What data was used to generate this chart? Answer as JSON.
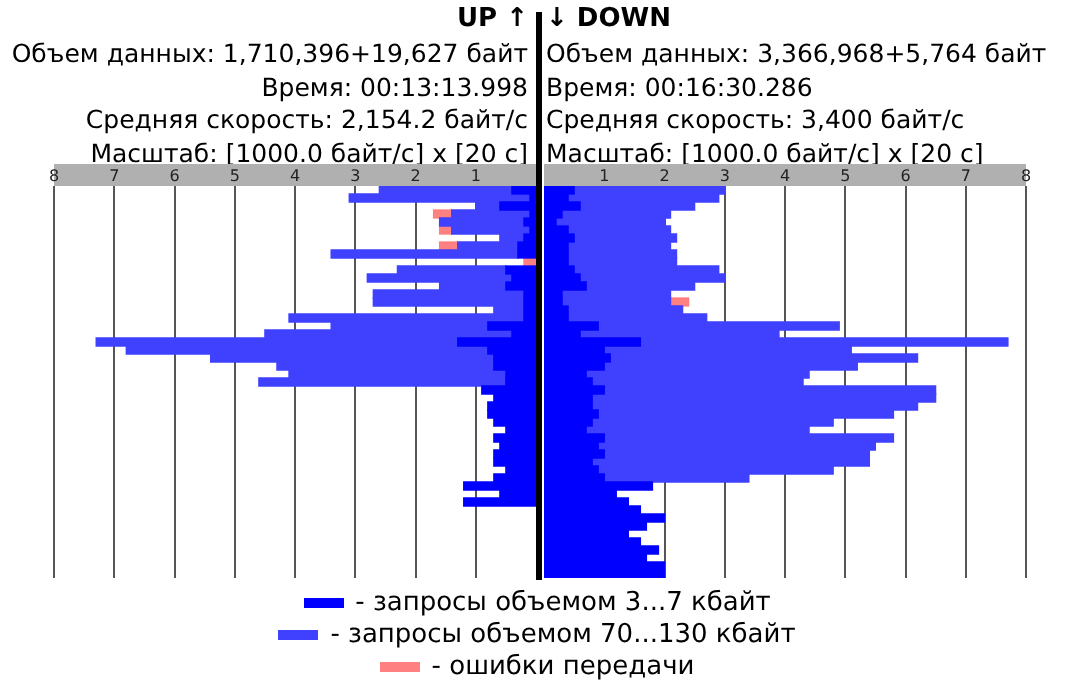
{
  "chart_data": [
    {
      "type": "bar",
      "orientation": "horizontal",
      "stacked": true,
      "title": "UP ↑",
      "subtitle": "Объем данных: 1,710,396+19,627 байт",
      "annotations": [
        "Время: 00:13:13.998",
        "Средняя скорость: 2,154.2 байт/с",
        "Масштаб: [1000.0 байт/с] x [20 с]"
      ],
      "categories": [
        null,
        null,
        null,
        null,
        null,
        null,
        null,
        null,
        null,
        null,
        null,
        null,
        null,
        null,
        null,
        null,
        null,
        null,
        null,
        null,
        null,
        null,
        null,
        null,
        null,
        null,
        null,
        null,
        null,
        null,
        null,
        null,
        null,
        null,
        null,
        null,
        null,
        null,
        null,
        null,
        null,
        null,
        null,
        null,
        null,
        null,
        null,
        null,
        null
      ],
      "xlim": [
        8,
        0
      ],
      "xticks": [
        1,
        2,
        3,
        4,
        5,
        6,
        7,
        8
      ],
      "grid": "x",
      "legend": "bottom",
      "series": [
        {
          "name": "- запросы объемом 3...7 кбайт",
          "color": "#0000ff",
          "values": [
            0.4,
            0.1,
            0.6,
            0.1,
            0.2,
            0.1,
            0.2,
            0.3,
            0.3,
            null,
            0.5,
            0.4,
            0.5,
            0.2,
            0.2,
            0.2,
            0.2,
            0.8,
            0.4,
            1.3,
            0.8,
            0.7,
            0.7,
            0.5,
            0.5,
            0.9,
            0.7,
            0.8,
            0.8,
            0.7,
            0.5,
            0.7,
            0.6,
            0.7,
            0.7,
            0.5,
            0.7,
            1.2,
            0.6,
            1.2,
            null,
            null,
            null,
            null,
            null,
            null,
            null,
            null,
            null
          ]
        },
        {
          "name": "- запросы объемом 70...130 кбайт",
          "color": "#4040ff",
          "values": [
            2.2,
            3.0,
            0.4,
            1.3,
            1.4,
            1.3,
            0.4,
            1.0,
            3.1,
            null,
            1.8,
            2.4,
            1.1,
            2.5,
            2.5,
            0.5,
            3.9,
            2.6,
            4.1,
            6.0,
            6.0,
            4.7,
            3.6,
            3.6,
            4.1,
            null,
            null,
            null,
            null,
            null,
            null,
            null,
            null,
            null,
            null,
            null,
            null,
            null,
            null,
            null,
            null,
            null,
            null,
            null,
            null,
            null,
            null,
            null,
            null
          ]
        },
        {
          "name": "- ошибки передачи",
          "color": "#ff8080",
          "values": [
            null,
            null,
            null,
            0.3,
            null,
            0.2,
            null,
            0.3,
            null,
            0.2,
            null,
            null,
            null,
            null,
            null,
            null,
            null,
            null,
            null,
            null,
            null,
            null,
            null,
            null,
            null,
            null,
            null,
            null,
            null,
            null,
            null,
            null,
            null,
            null,
            null,
            null,
            null,
            null,
            null,
            null,
            null,
            null,
            null,
            null,
            null,
            null,
            null,
            null,
            null
          ]
        }
      ]
    },
    {
      "type": "bar",
      "orientation": "horizontal",
      "stacked": true,
      "title": "↓ DOWN",
      "subtitle": "Объем данных: 3,366,968+5,764 байт",
      "annotations": [
        "Время: 00:16:30.286",
        "Средняя скорость: 3,400 байт/с",
        "Масштаб: [1000.0 байт/с] x [20 с]"
      ],
      "categories": [
        null,
        null,
        null,
        null,
        null,
        null,
        null,
        null,
        null,
        null,
        null,
        null,
        null,
        null,
        null,
        null,
        null,
        null,
        null,
        null,
        null,
        null,
        null,
        null,
        null,
        null,
        null,
        null,
        null,
        null,
        null,
        null,
        null,
        null,
        null,
        null,
        null,
        null,
        null,
        null,
        null,
        null,
        null,
        null,
        null,
        null,
        null,
        null,
        null
      ],
      "xlim": [
        0,
        8
      ],
      "xticks": [
        1,
        2,
        3,
        4,
        5,
        6,
        7,
        8
      ],
      "grid": "x",
      "series": [
        {
          "color": "#0000ff",
          "values": [
            0.5,
            0.4,
            0.6,
            0.3,
            0.2,
            0.4,
            0.5,
            0.4,
            0.4,
            0.4,
            0.5,
            0.6,
            0.7,
            0.3,
            0.3,
            0.4,
            0.4,
            0.9,
            0.6,
            1.6,
            1.0,
            1.1,
            1.0,
            0.7,
            0.8,
            1.0,
            0.8,
            0.8,
            0.9,
            0.8,
            0.7,
            1.0,
            0.9,
            1.0,
            0.8,
            0.9,
            1.0,
            1.8,
            1.2,
            1.4,
            1.6,
            2.0,
            1.7,
            1.4,
            1.6,
            1.9,
            1.7,
            2.0,
            2.0
          ]
        },
        {
          "color": "#4040ff",
          "values": [
            2.5,
            2.5,
            1.9,
            1.8,
            1.8,
            1.7,
            1.7,
            1.7,
            1.8,
            1.8,
            2.4,
            2.4,
            1.8,
            1.8,
            1.8,
            1.9,
            2.3,
            4.0,
            3.3,
            6.1,
            4.1,
            5.1,
            4.2,
            3.7,
            3.5,
            5.5,
            5.7,
            5.4,
            4.9,
            4.0,
            3.7,
            4.8,
            4.6,
            4.4,
            4.6,
            3.9,
            2.4,
            null,
            null,
            null,
            null,
            null,
            null,
            null,
            null,
            null,
            null,
            null,
            null
          ]
        },
        {
          "color": "#ff8080",
          "values": [
            null,
            null,
            null,
            null,
            null,
            null,
            null,
            null,
            null,
            null,
            null,
            null,
            null,
            null,
            0.3,
            null,
            null,
            null,
            null,
            null,
            null,
            null,
            null,
            null,
            null,
            null,
            null,
            null,
            null,
            null,
            null,
            null,
            null,
            null,
            null,
            null,
            null,
            null,
            null,
            null,
            null,
            null,
            null,
            null,
            null,
            null,
            null,
            null,
            null
          ]
        }
      ]
    }
  ]
}
